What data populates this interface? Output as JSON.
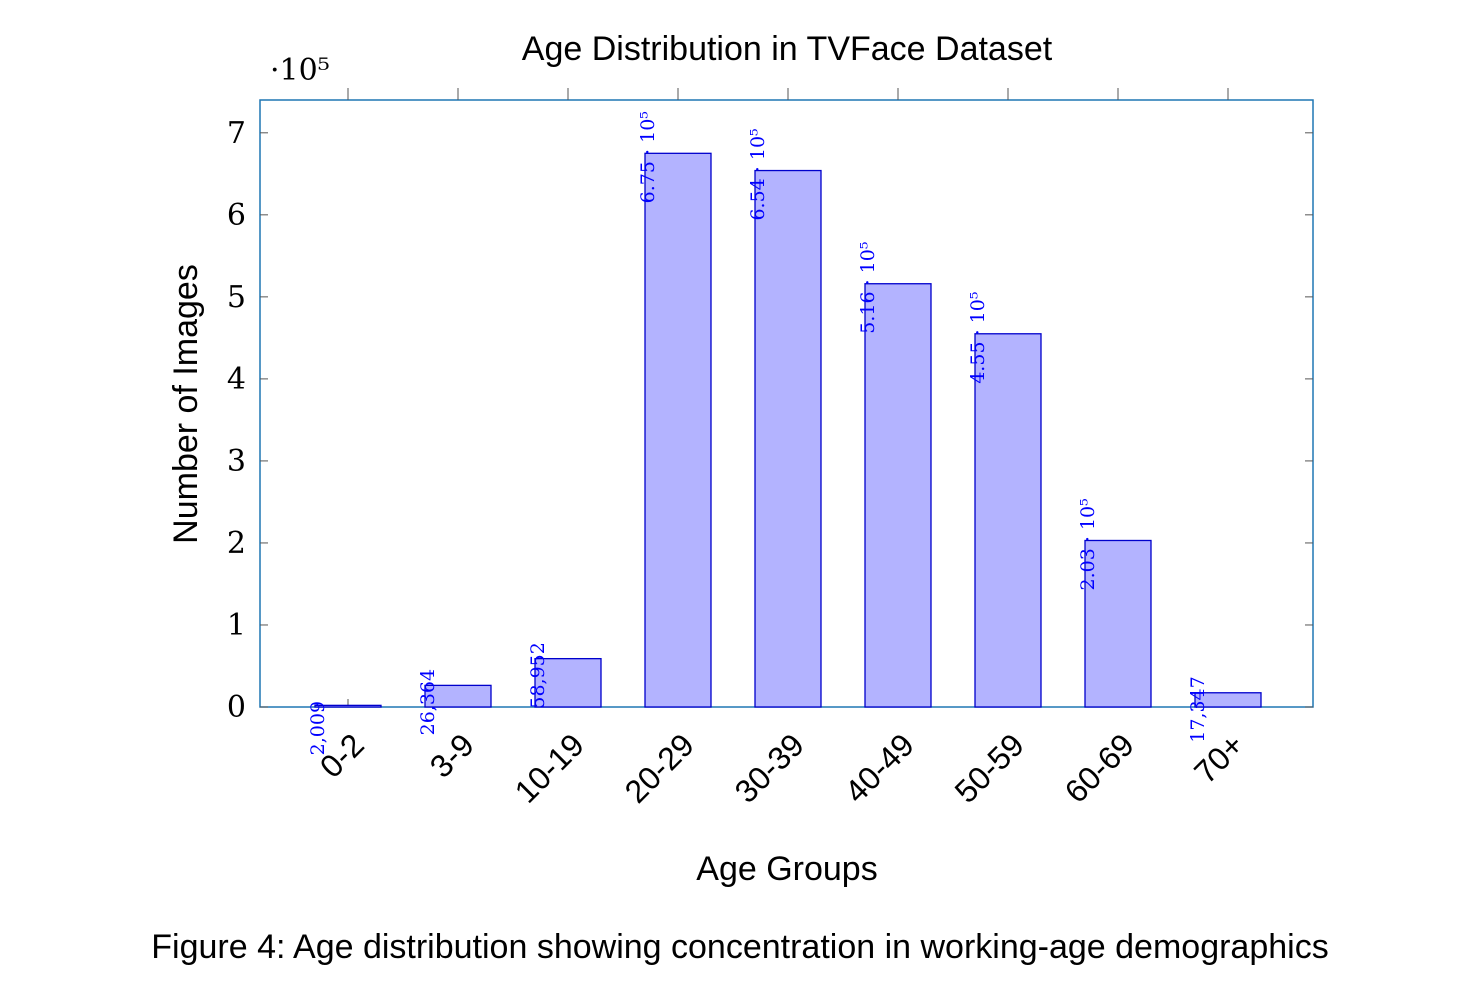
{
  "caption": "Figure 4: Age distribution showing concentration in working-age demographics",
  "colors": {
    "bar_fill": "#b3b3ff",
    "bar_stroke": "#0000cc",
    "axis": "#1f77b4",
    "label": "#0000ff"
  },
  "chart_data": {
    "type": "bar",
    "title": "Age Distribution in TVFace Dataset",
    "xlabel": "Age Groups",
    "ylabel": "Number of Images",
    "y_scale_note": "·10⁵",
    "ylim": [
      0,
      740000
    ],
    "yticks": [
      0,
      1,
      2,
      3,
      4,
      5,
      6,
      7
    ],
    "grid": false,
    "categories": [
      "0-2",
      "3-9",
      "10-19",
      "20-29",
      "30-39",
      "40-49",
      "50-59",
      "60-69",
      "70+"
    ],
    "values": [
      2009,
      26364,
      58952,
      675000,
      654000,
      516000,
      455000,
      203000,
      17347
    ],
    "data_labels": [
      "2,009",
      "26,364",
      "58,952",
      "6.75 · 10⁵",
      "6.54 · 10⁵",
      "5.16 · 10⁵",
      "4.55 · 10⁵",
      "2.03 · 10⁵",
      "17,347"
    ]
  }
}
